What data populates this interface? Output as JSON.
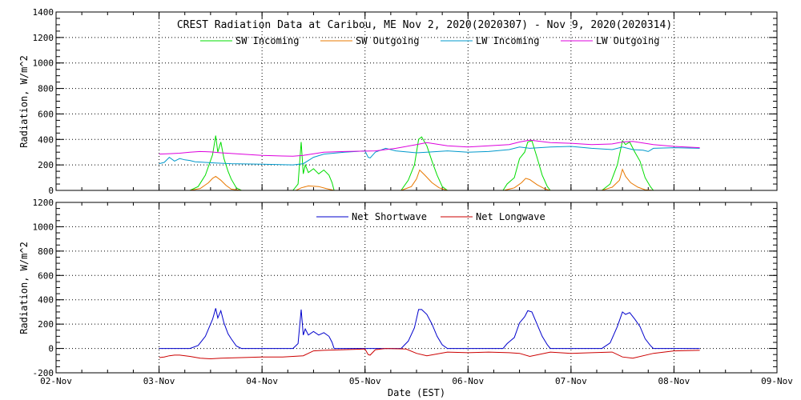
{
  "title": "CREST Radiation Data at Caribou, ME   Nov  2, 2020(2020307) - Nov  9, 2020(2020314)",
  "chart_data": [
    {
      "type": "line",
      "title": "CREST Radiation Data at Caribou, ME   Nov  2, 2020(2020307) - Nov  9, 2020(2020314)",
      "ylabel": "Radiation, W/m^2",
      "xlabel": "",
      "xlim": [
        "02-Nov",
        "09-Nov"
      ],
      "ylim": [
        0,
        1400
      ],
      "yticks": [
        "0",
        "200",
        "400",
        "600",
        "800",
        "1000",
        "1200",
        "1400"
      ],
      "grid": true,
      "legend_position": "top",
      "series": [
        {
          "name": "SW Incoming",
          "color": "#00dd00",
          "x": [
            1.0,
            1.3,
            1.38,
            1.45,
            1.52,
            1.55,
            1.57,
            1.6,
            1.63,
            1.67,
            1.7,
            1.75,
            1.8,
            2.0,
            2.3,
            2.35,
            2.38,
            2.4,
            2.42,
            2.45,
            2.5,
            2.55,
            2.6,
            2.65,
            2.68,
            2.7,
            3.0,
            3.35,
            3.42,
            3.48,
            3.52,
            3.55,
            3.6,
            3.65,
            3.7,
            3.75,
            3.8,
            4.0,
            4.34,
            4.38,
            4.45,
            4.5,
            4.55,
            4.58,
            4.62,
            4.67,
            4.72,
            4.77,
            4.8,
            5.0,
            5.3,
            5.38,
            5.45,
            5.5,
            5.53,
            5.57,
            5.62,
            5.67,
            5.72,
            5.77,
            5.8,
            6.25
          ],
          "values": [
            0,
            0,
            30,
            120,
            280,
            430,
            300,
            380,
            250,
            150,
            90,
            20,
            0,
            0,
            0,
            50,
            380,
            130,
            200,
            140,
            170,
            130,
            160,
            120,
            60,
            0,
            0,
            0,
            80,
            200,
            400,
            420,
            350,
            230,
            120,
            30,
            0,
            0,
            0,
            50,
            100,
            250,
            300,
            380,
            390,
            260,
            120,
            30,
            0,
            0,
            0,
            50,
            200,
            390,
            360,
            380,
            300,
            230,
            100,
            30,
            0,
            0
          ]
        },
        {
          "name": "SW Outgoing",
          "color": "#e87800",
          "x": [
            1.0,
            1.3,
            1.4,
            1.48,
            1.52,
            1.55,
            1.6,
            1.65,
            1.7,
            1.8,
            2.0,
            2.33,
            2.38,
            2.45,
            2.55,
            2.62,
            2.7,
            3.0,
            3.35,
            3.45,
            3.5,
            3.53,
            3.58,
            3.65,
            3.72,
            3.8,
            4.0,
            4.35,
            4.45,
            4.52,
            4.56,
            4.6,
            4.67,
            4.75,
            4.8,
            5.0,
            5.3,
            5.4,
            5.47,
            5.5,
            5.53,
            5.58,
            5.65,
            5.72,
            5.8,
            6.25
          ],
          "values": [
            0,
            0,
            15,
            60,
            95,
            110,
            80,
            40,
            10,
            0,
            0,
            0,
            20,
            35,
            30,
            15,
            0,
            0,
            0,
            30,
            90,
            160,
            120,
            60,
            20,
            0,
            0,
            0,
            20,
            60,
            95,
            85,
            45,
            10,
            0,
            0,
            0,
            25,
            80,
            165,
            110,
            60,
            25,
            5,
            0,
            0
          ]
        },
        {
          "name": "LW Incoming",
          "color": "#0099cc",
          "x": [
            1.0,
            1.05,
            1.1,
            1.15,
            1.2,
            1.25,
            1.3,
            1.35,
            1.45,
            1.55,
            1.7,
            2.0,
            2.3,
            2.4,
            2.5,
            2.6,
            2.8,
            3.0,
            3.03,
            3.05,
            3.1,
            3.2,
            3.3,
            3.5,
            3.6,
            3.8,
            4.0,
            4.2,
            4.4,
            4.5,
            4.6,
            4.8,
            5.0,
            5.2,
            5.4,
            5.5,
            5.6,
            5.7,
            5.75,
            5.8,
            6.0,
            6.25
          ],
          "values": [
            210,
            220,
            260,
            230,
            250,
            240,
            235,
            225,
            220,
            215,
            210,
            205,
            200,
            210,
            260,
            285,
            300,
            310,
            260,
            255,
            300,
            330,
            310,
            295,
            300,
            310,
            300,
            305,
            320,
            340,
            330,
            340,
            345,
            330,
            320,
            340,
            320,
            315,
            305,
            330,
            335,
            330
          ]
        },
        {
          "name": "LW Outgoing",
          "color": "#dd00dd",
          "x": [
            1.0,
            1.1,
            1.2,
            1.3,
            1.4,
            1.5,
            1.6,
            1.8,
            2.0,
            2.2,
            2.3,
            2.4,
            2.6,
            2.8,
            3.0,
            3.1,
            3.3,
            3.5,
            3.6,
            3.8,
            4.0,
            4.2,
            4.4,
            4.5,
            4.6,
            4.8,
            5.0,
            5.2,
            5.4,
            5.5,
            5.6,
            5.8,
            6.0,
            6.25
          ],
          "values": [
            285,
            288,
            292,
            300,
            305,
            302,
            295,
            285,
            275,
            270,
            268,
            275,
            300,
            305,
            308,
            310,
            330,
            360,
            375,
            350,
            340,
            350,
            360,
            380,
            395,
            375,
            370,
            360,
            365,
            380,
            385,
            360,
            345,
            335
          ]
        }
      ]
    },
    {
      "type": "line",
      "ylabel": "Radiation, W/m^2",
      "xlabel": "Date (EST)",
      "xlim": [
        "02-Nov",
        "09-Nov"
      ],
      "ylim": [
        -200,
        1200
      ],
      "yticks": [
        "-200",
        "0",
        "200",
        "400",
        "600",
        "800",
        "1000",
        "1200"
      ],
      "xticks": [
        "02-Nov",
        "03-Nov",
        "04-Nov",
        "05-Nov",
        "06-Nov",
        "07-Nov",
        "08-Nov",
        "09-Nov"
      ],
      "grid": true,
      "legend_position": "top",
      "series": [
        {
          "name": "Net Shortwave",
          "color": "#0000cc",
          "x": [
            1.0,
            1.3,
            1.38,
            1.45,
            1.52,
            1.55,
            1.57,
            1.6,
            1.63,
            1.67,
            1.7,
            1.75,
            1.8,
            2.0,
            2.3,
            2.35,
            2.38,
            2.4,
            2.42,
            2.45,
            2.5,
            2.55,
            2.6,
            2.65,
            2.68,
            2.7,
            3.0,
            3.35,
            3.42,
            3.48,
            3.52,
            3.55,
            3.6,
            3.65,
            3.7,
            3.75,
            3.8,
            4.0,
            4.34,
            4.38,
            4.45,
            4.5,
            4.55,
            4.58,
            4.62,
            4.67,
            4.72,
            4.77,
            4.8,
            5.0,
            5.3,
            5.38,
            5.45,
            5.5,
            5.53,
            5.57,
            5.62,
            5.67,
            5.72,
            5.77,
            5.8,
            6.25
          ],
          "values": [
            0,
            0,
            25,
            100,
            240,
            330,
            250,
            310,
            210,
            120,
            80,
            20,
            0,
            0,
            0,
            40,
            320,
            110,
            160,
            110,
            140,
            110,
            130,
            100,
            50,
            0,
            0,
            0,
            60,
            170,
            320,
            320,
            280,
            200,
            100,
            30,
            0,
            0,
            0,
            40,
            90,
            210,
            260,
            310,
            300,
            200,
            100,
            30,
            0,
            0,
            0,
            45,
            180,
            300,
            280,
            295,
            240,
            180,
            80,
            25,
            0,
            0
          ]
        },
        {
          "name": "Net Longwave",
          "color": "#cc0000",
          "x": [
            1.0,
            1.05,
            1.1,
            1.15,
            1.2,
            1.3,
            1.4,
            1.5,
            1.6,
            1.8,
            2.0,
            2.2,
            2.4,
            2.5,
            2.6,
            2.8,
            3.0,
            3.03,
            3.05,
            3.1,
            3.2,
            3.4,
            3.5,
            3.6,
            3.8,
            4.0,
            4.2,
            4.4,
            4.5,
            4.6,
            4.8,
            5.0,
            5.2,
            5.4,
            5.5,
            5.6,
            5.8,
            6.0,
            6.25
          ],
          "values": [
            -75,
            -70,
            -60,
            -55,
            -55,
            -65,
            -80,
            -85,
            -80,
            -75,
            -70,
            -70,
            -60,
            -20,
            -15,
            -10,
            -5,
            -50,
            -55,
            -10,
            0,
            -5,
            -40,
            -60,
            -30,
            -35,
            -30,
            -35,
            -40,
            -65,
            -30,
            -40,
            -35,
            -30,
            -70,
            -80,
            -40,
            -20,
            -15
          ]
        }
      ]
    }
  ]
}
